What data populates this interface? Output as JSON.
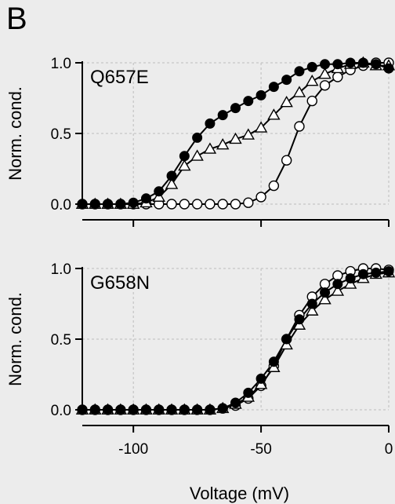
{
  "figure": {
    "panel_letter": "B",
    "background": "#ececec"
  },
  "chart_data": [
    {
      "type": "scatter",
      "panel_label": "Q657E",
      "xlabel": "",
      "ylabel": "Norm. cond.",
      "xlim": [
        -120,
        0
      ],
      "ylim": [
        0,
        1.0
      ],
      "yticks": [
        0.0,
        0.5,
        1.0
      ],
      "ytick_labels": [
        "0.0",
        "0.5",
        "1.0"
      ],
      "xticks": [
        -100,
        -50,
        0
      ],
      "xtick_labels": [
        "",
        "",
        ""
      ],
      "grid": true,
      "series": [
        {
          "marker": "filled-circle",
          "fit": true,
          "x": [
            -120,
            -115,
            -110,
            -105,
            -100,
            -95,
            -90,
            -85,
            -80,
            -75,
            -70,
            -65,
            -60,
            -55,
            -50,
            -45,
            -40,
            -35,
            -30,
            -25,
            -20,
            -15,
            -10,
            -5,
            0
          ],
          "y": [
            0,
            0,
            0,
            0,
            0.01,
            0.04,
            0.09,
            0.2,
            0.34,
            0.47,
            0.57,
            0.63,
            0.68,
            0.73,
            0.77,
            0.83,
            0.88,
            0.94,
            0.97,
            0.99,
            0.99,
            1.0,
            1.0,
            0.99,
            0.96
          ]
        },
        {
          "marker": "open-triangle",
          "fit": true,
          "x": [
            -120,
            -115,
            -110,
            -105,
            -100,
            -95,
            -90,
            -85,
            -80,
            -75,
            -70,
            -65,
            -60,
            -55,
            -50,
            -45,
            -40,
            -35,
            -30,
            -25,
            -20,
            -15,
            -10,
            -5,
            0
          ],
          "y": [
            0,
            0,
            0,
            0,
            0,
            0.01,
            0.05,
            0.14,
            0.27,
            0.34,
            0.39,
            0.42,
            0.46,
            0.49,
            0.54,
            0.63,
            0.72,
            0.79,
            0.87,
            0.92,
            0.96,
            0.99,
            1.0,
            0.98,
            0.98
          ]
        },
        {
          "marker": "open-circle",
          "fit": true,
          "x": [
            -120,
            -115,
            -110,
            -105,
            -100,
            -95,
            -90,
            -85,
            -80,
            -75,
            -70,
            -65,
            -60,
            -55,
            -50,
            -45,
            -40,
            -35,
            -30,
            -25,
            -20,
            -15,
            -10,
            -5,
            0
          ],
          "y": [
            0,
            0,
            0,
            0,
            0,
            0,
            0,
            0,
            0,
            0,
            0,
            0,
            0,
            0.01,
            0.05,
            0.13,
            0.31,
            0.55,
            0.73,
            0.84,
            0.9,
            0.95,
            0.98,
            1.0,
            1.0
          ]
        }
      ]
    },
    {
      "type": "scatter",
      "panel_label": "G658N",
      "xlabel": "Voltage (mV)",
      "ylabel": "Norm. cond.",
      "xlim": [
        -120,
        0
      ],
      "ylim": [
        0,
        1.0
      ],
      "yticks": [
        0.0,
        0.5,
        1.0
      ],
      "ytick_labels": [
        "0.0",
        "0.5",
        "1.0"
      ],
      "xticks": [
        -100,
        -50,
        0
      ],
      "xtick_labels": [
        "-100",
        "-50",
        "0"
      ],
      "grid": true,
      "series": [
        {
          "marker": "filled-circle",
          "fit": true,
          "x": [
            -120,
            -115,
            -110,
            -105,
            -100,
            -95,
            -90,
            -85,
            -80,
            -75,
            -70,
            -65,
            -60,
            -55,
            -50,
            -45,
            -40,
            -35,
            -30,
            -25,
            -20,
            -15,
            -10,
            -5,
            0
          ],
          "y": [
            0,
            0,
            0,
            0,
            0,
            0,
            0,
            0,
            0,
            0,
            0,
            0.01,
            0.05,
            0.12,
            0.22,
            0.34,
            0.5,
            0.64,
            0.75,
            0.83,
            0.89,
            0.93,
            0.96,
            0.97,
            0.98
          ]
        },
        {
          "marker": "open-triangle",
          "fit": true,
          "x": [
            -120,
            -115,
            -110,
            -105,
            -100,
            -95,
            -90,
            -85,
            -80,
            -75,
            -70,
            -65,
            -60,
            -55,
            -50,
            -45,
            -40,
            -35,
            -30,
            -25,
            -20,
            -15,
            -10,
            -5,
            0
          ],
          "y": [
            0,
            0,
            0,
            0,
            0,
            0,
            0,
            0,
            0,
            0,
            0,
            0.01,
            0.04,
            0.09,
            0.18,
            0.3,
            0.46,
            0.6,
            0.7,
            0.78,
            0.84,
            0.89,
            0.93,
            0.96,
            0.97
          ]
        },
        {
          "marker": "open-circle",
          "fit": true,
          "x": [
            -120,
            -115,
            -110,
            -105,
            -100,
            -95,
            -90,
            -85,
            -80,
            -75,
            -70,
            -65,
            -60,
            -55,
            -50,
            -45,
            -40,
            -35,
            -30,
            -25,
            -20,
            -15,
            -10,
            -5,
            0
          ],
          "y": [
            0,
            0,
            0,
            0,
            0,
            0,
            0,
            0,
            0,
            0,
            0,
            0.01,
            0.03,
            0.08,
            0.17,
            0.31,
            0.5,
            0.67,
            0.8,
            0.89,
            0.95,
            0.98,
            1.0,
            1.0,
            0.99
          ]
        }
      ]
    }
  ]
}
